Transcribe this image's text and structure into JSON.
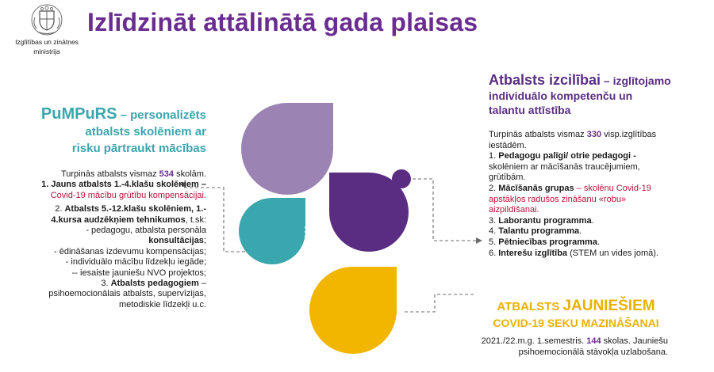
{
  "logo": {
    "line1": "Izglītības un zinātnes",
    "line2": "ministrija"
  },
  "title": "Izlīdzināt attālinātā gada plaisas",
  "colors": {
    "title": "#6a2c91",
    "teal": "#3aa6ad",
    "purple_dark": "#5a2d82",
    "lavender": "#9b84b4",
    "yellow": "#f2b500",
    "red": "#b5123a"
  },
  "pumpurs": {
    "name": "PuMPuRS",
    "head_rest": " – personalizēts",
    "head_line2": "atbalsts skolēniem ar",
    "head_line3": "risku pārtraukt mācības",
    "intro_a": "Turpinās atbalsts vismaz ",
    "intro_num": "534",
    "intro_b": " skolām.",
    "i1_num": "1.",
    "i1_bold": " Jauns atbalsts 1.-4.klašu skolēniem –",
    "i1_red": "Covid-19 mācību grūtību kompensācijai.",
    "i2_a": "2. ",
    "i2_bold1": "Atbalsts 5.-12.klašu skolēniem, 1.-",
    "i2_bold2": "4.kursa audzēkņiem tehnikumos",
    "i2_tail": ", t.sk:",
    "i2_l1": "- pedagogu, atbalsta personāla",
    "i2_l2": "konsultācijas",
    "i2_l2_tail": ";",
    "i2_l3": "-  ēdināšanas izdevumu kompensācijas;",
    "i2_l4": "- individuālo mācību līdzekļu iegāde;",
    "i2_l5": "-- iesaiste jauniešu NVO projektos;",
    "i3_a": "3. ",
    "i3_bold": "Atbalsts pedagogiem",
    "i3_tail": " –",
    "i3_l1": "psihoemocionālais atbalsts, supervīzijas,",
    "i3_l2": "metodiskie līdzekļi u.c."
  },
  "izcilibai": {
    "head_big": "Atbalsts izcilībai",
    "head_rest": " – izglītojamo",
    "head_line2": "individuālo kompetenču un",
    "head_line3": "talantu attīstība",
    "intro_a": "Turpinās atbalsts vismaz ",
    "intro_num": "330",
    "intro_b": " visp.izglītības",
    "intro_c": "iestādēm.",
    "i1_a": "1. ",
    "i1_bold": "Pedagogu palīgi/ otrie pedagogi -",
    "i1_l2": "skolēniem ar mācīšanās traucējumiem,",
    "i1_l3": "grūtībām.",
    "i2_a": "2. ",
    "i2_bold": "Mācīšanās grupas",
    "i2_red1": " – skolēnu Covid-19",
    "i2_red2": "apstākļos radušos zināšanu «robu»",
    "i2_red3": "aizpildīšanai.",
    "i3_a": "3. ",
    "i3_bold": "Laborantu programma",
    "i3_tail": ".",
    "i4_a": "4. ",
    "i4_bold": "Talantu programma",
    "i4_tail": ".",
    "i5_a": "5. ",
    "i5_bold": "Pētniecības programma",
    "i5_tail": ".",
    "i6_a": "6. ",
    "i6_bold": "Interešu izglītība",
    "i6_tail": " (STEM un vides jomā)."
  },
  "jauniesiem": {
    "head_small": "ATBALSTS ",
    "head_big": "JAUNIEŠIEM",
    "head_line2": "COVID-19 SEKU MAZINĀŠANAI",
    "body_a": "2021./22.m.g. 1.semestris. ",
    "body_num": "144",
    "body_b": " skolas. Jauniešu",
    "body_c": "psihoemocionālā stāvokļa uzlabošana."
  },
  "center": {
    "dots": "⋮"
  }
}
